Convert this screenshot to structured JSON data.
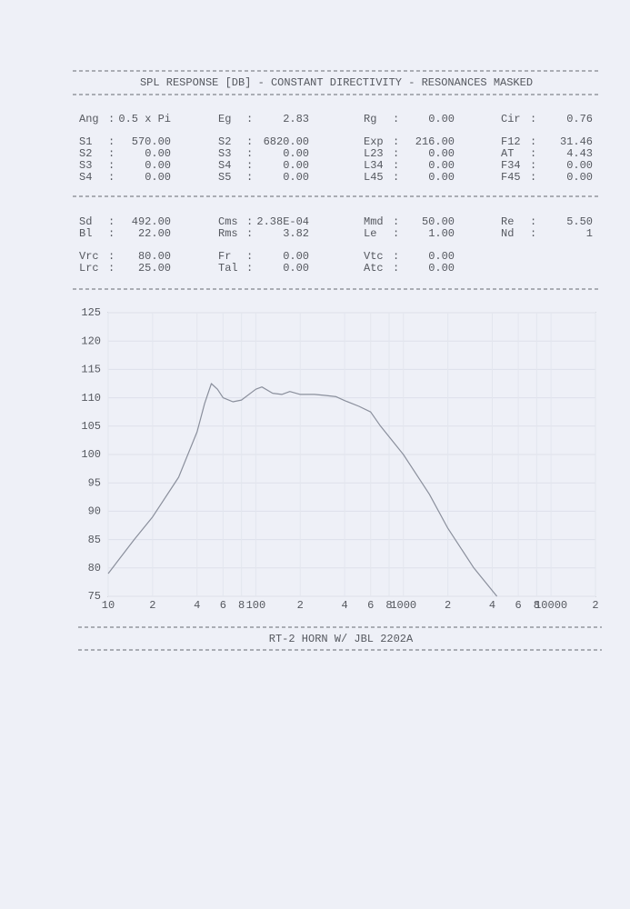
{
  "header": {
    "title": "SPL RESPONSE [DB] - CONSTANT DIRECTIVITY - RESONANCES MASKED"
  },
  "separator": ":",
  "parameters": [
    [
      {
        "label": "Ang",
        "value": "0.5 x Pi"
      },
      {
        "label": "Eg",
        "value": "2.83"
      },
      {
        "label": "Rg",
        "value": "0.00"
      },
      {
        "label": "Cir",
        "value": "0.76"
      }
    ],
    [
      {
        "label": "S1",
        "value": "570.00"
      },
      {
        "label": "S2",
        "value": "6820.00"
      },
      {
        "label": "Exp",
        "value": "216.00"
      },
      {
        "label": "F12",
        "value": "31.46"
      }
    ],
    [
      {
        "label": "S2",
        "value": "0.00"
      },
      {
        "label": "S3",
        "value": "0.00"
      },
      {
        "label": "L23",
        "value": "0.00"
      },
      {
        "label": "AT",
        "value": "4.43"
      }
    ],
    [
      {
        "label": "S3",
        "value": "0.00"
      },
      {
        "label": "S4",
        "value": "0.00"
      },
      {
        "label": "L34",
        "value": "0.00"
      },
      {
        "label": "F34",
        "value": "0.00"
      }
    ],
    [
      {
        "label": "S4",
        "value": "0.00"
      },
      {
        "label": "S5",
        "value": "0.00"
      },
      {
        "label": "L45",
        "value": "0.00"
      },
      {
        "label": "F45",
        "value": "0.00"
      }
    ],
    [
      {
        "label": "Sd",
        "value": "492.00"
      },
      {
        "label": "Cms",
        "value": "2.38E-04"
      },
      {
        "label": "Mmd",
        "value": "50.00"
      },
      {
        "label": "Re",
        "value": "5.50"
      }
    ],
    [
      {
        "label": "Bl",
        "value": "22.00"
      },
      {
        "label": "Rms",
        "value": "3.82"
      },
      {
        "label": "Le",
        "value": "1.00"
      },
      {
        "label": "Nd",
        "value": "1"
      }
    ],
    [
      {
        "label": "Vrc",
        "value": "80.00"
      },
      {
        "label": "Fr",
        "value": "0.00"
      },
      {
        "label": "Vtc",
        "value": "0.00"
      }
    ],
    [
      {
        "label": "Lrc",
        "value": "25.00"
      },
      {
        "label": "Tal",
        "value": "0.00"
      },
      {
        "label": "Atc",
        "value": "0.00"
      }
    ]
  ],
  "chart_data": {
    "type": "line",
    "x": [
      10,
      15,
      20,
      30,
      40,
      45,
      50,
      55,
      60,
      70,
      80,
      100,
      110,
      130,
      150,
      170,
      200,
      250,
      300,
      350,
      400,
      500,
      600,
      700,
      1000,
      1500,
      2000,
      3000,
      4300
    ],
    "values": [
      79,
      85,
      89,
      96,
      104,
      109,
      112.5,
      111.5,
      110,
      109.3,
      109.6,
      111.5,
      111.9,
      110.8,
      110.6,
      111.1,
      110.6,
      110.6,
      110.4,
      110.2,
      109.5,
      108.5,
      107.5,
      105,
      100,
      93,
      87,
      80,
      75
    ],
    "color": "#8a8f9c",
    "xlog": true,
    "xlim": [
      10,
      20000
    ],
    "ylim": [
      75,
      125
    ],
    "yticks": [
      75,
      80,
      85,
      90,
      95,
      100,
      105,
      110,
      115,
      120,
      125
    ],
    "xticks": [
      10,
      {
        "value": 20,
        "label": "2"
      },
      {
        "value": 40,
        "label": "4"
      },
      {
        "value": 60,
        "label": "6"
      },
      {
        "value": 80,
        "label": "8"
      },
      100,
      {
        "value": 200,
        "label": "2"
      },
      {
        "value": 400,
        "label": "4"
      },
      {
        "value": 600,
        "label": "6"
      },
      {
        "value": 800,
        "label": "8"
      },
      1000,
      {
        "value": 2000,
        "label": "2"
      },
      {
        "value": 4000,
        "label": "4"
      },
      {
        "value": 6000,
        "label": "6"
      },
      {
        "value": 8000,
        "label": "8"
      },
      10000,
      {
        "value": 20000,
        "label": "2"
      }
    ],
    "grid": true
  },
  "footer": {
    "caption": "RT-2 HORN W/ JBL 2202A"
  }
}
